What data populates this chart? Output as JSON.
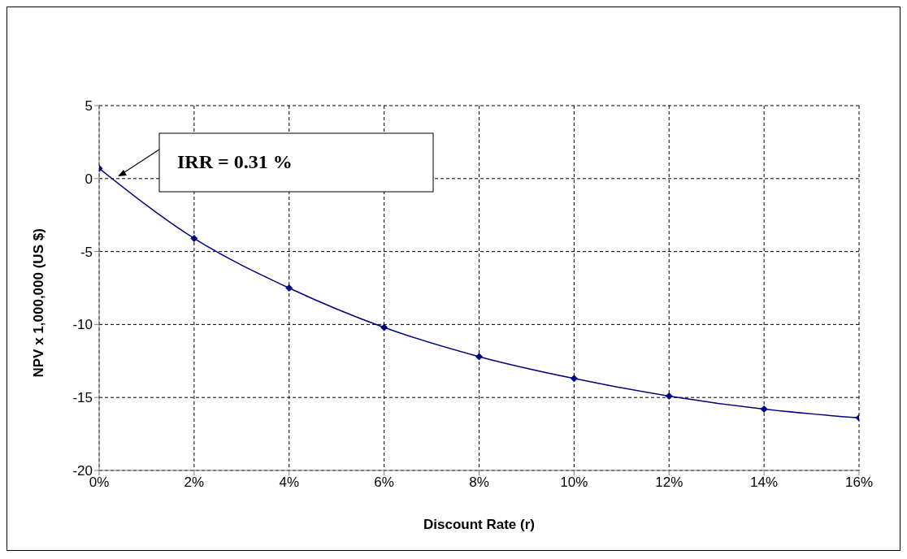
{
  "chart_data": {
    "type": "line",
    "xlabel": "Discount Rate (r)",
    "ylabel": "NPV  x 1,000,000 (US $)",
    "x": [
      0,
      2,
      4,
      6,
      8,
      10,
      12,
      14,
      16
    ],
    "series": [
      {
        "color": "#000080",
        "values": [
          0.7,
          -4.1,
          -7.5,
          -10.2,
          -12.2,
          -13.7,
          -14.9,
          -15.8,
          -16.4
        ]
      }
    ],
    "xlim": [
      0,
      16
    ],
    "xticks": [
      {
        "value": 0,
        "label": "0%"
      },
      {
        "value": 2,
        "label": "2%"
      },
      {
        "value": 4,
        "label": "4%"
      },
      {
        "value": 6,
        "label": "6%"
      },
      {
        "value": 8,
        "label": "8%"
      },
      {
        "value": 10,
        "label": "10%"
      },
      {
        "value": 12,
        "label": "12%"
      },
      {
        "value": 14,
        "label": "14%"
      },
      {
        "value": 16,
        "label": "16%"
      }
    ],
    "ylim": [
      -20,
      5
    ],
    "yticks": [
      -20,
      -15,
      -10,
      -5,
      0,
      5
    ],
    "grid": true,
    "marker": "diamond",
    "line_style": "solid",
    "legend": false,
    "annotations": [
      "IRR = 0.31 %"
    ]
  }
}
